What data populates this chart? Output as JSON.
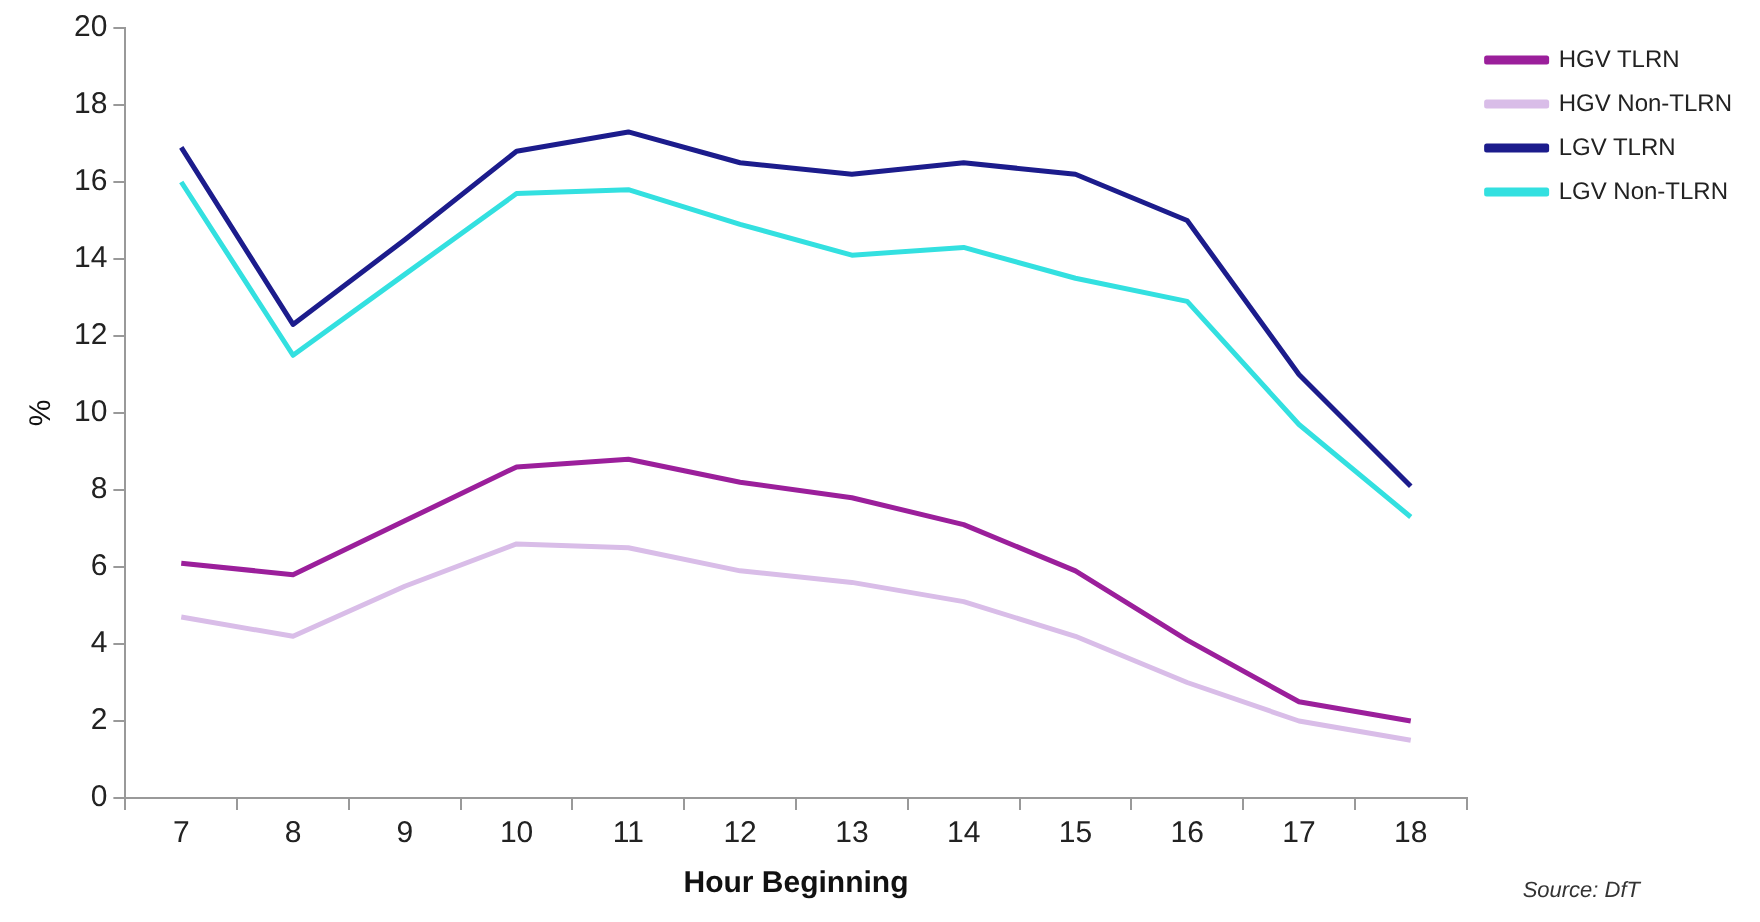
{
  "chart_data": {
    "type": "line",
    "xlabel": "Hour Beginning",
    "ylabel": "%",
    "annotations": [
      "Source: DfT"
    ],
    "categories": [
      "7",
      "8",
      "9",
      "10",
      "11",
      "12",
      "13",
      "14",
      "15",
      "16",
      "17",
      "18"
    ],
    "series": [
      {
        "name": "HGV TLRN",
        "color": "#9b1f9b",
        "values": [
          6.1,
          5.8,
          7.2,
          8.6,
          8.8,
          8.2,
          7.8,
          7.1,
          5.9,
          4.1,
          2.5,
          2.0
        ]
      },
      {
        "name": "HGV Non-TLRN",
        "color": "#d9bde8",
        "values": [
          4.7,
          4.2,
          5.5,
          6.6,
          6.5,
          5.9,
          5.6,
          5.1,
          4.2,
          3.0,
          2.0,
          1.5
        ]
      },
      {
        "name": "LGV TLRN",
        "color": "#1c1c8c",
        "values": [
          16.9,
          12.3,
          14.5,
          16.8,
          17.3,
          16.5,
          16.2,
          16.5,
          16.2,
          15.0,
          11.0,
          8.1
        ]
      },
      {
        "name": "LGV Non-TLRN",
        "color": "#33e0e0",
        "values": [
          16.0,
          11.5,
          13.6,
          15.7,
          15.8,
          14.9,
          14.1,
          14.3,
          13.5,
          12.9,
          9.7,
          7.3
        ]
      }
    ],
    "ylim": [
      0,
      20
    ],
    "yticks": [
      0,
      2,
      4,
      6,
      8,
      10,
      12,
      14,
      16,
      18,
      20
    ],
    "grid": false,
    "legend": "top right",
    "marker": "none",
    "line_style": "solid"
  }
}
